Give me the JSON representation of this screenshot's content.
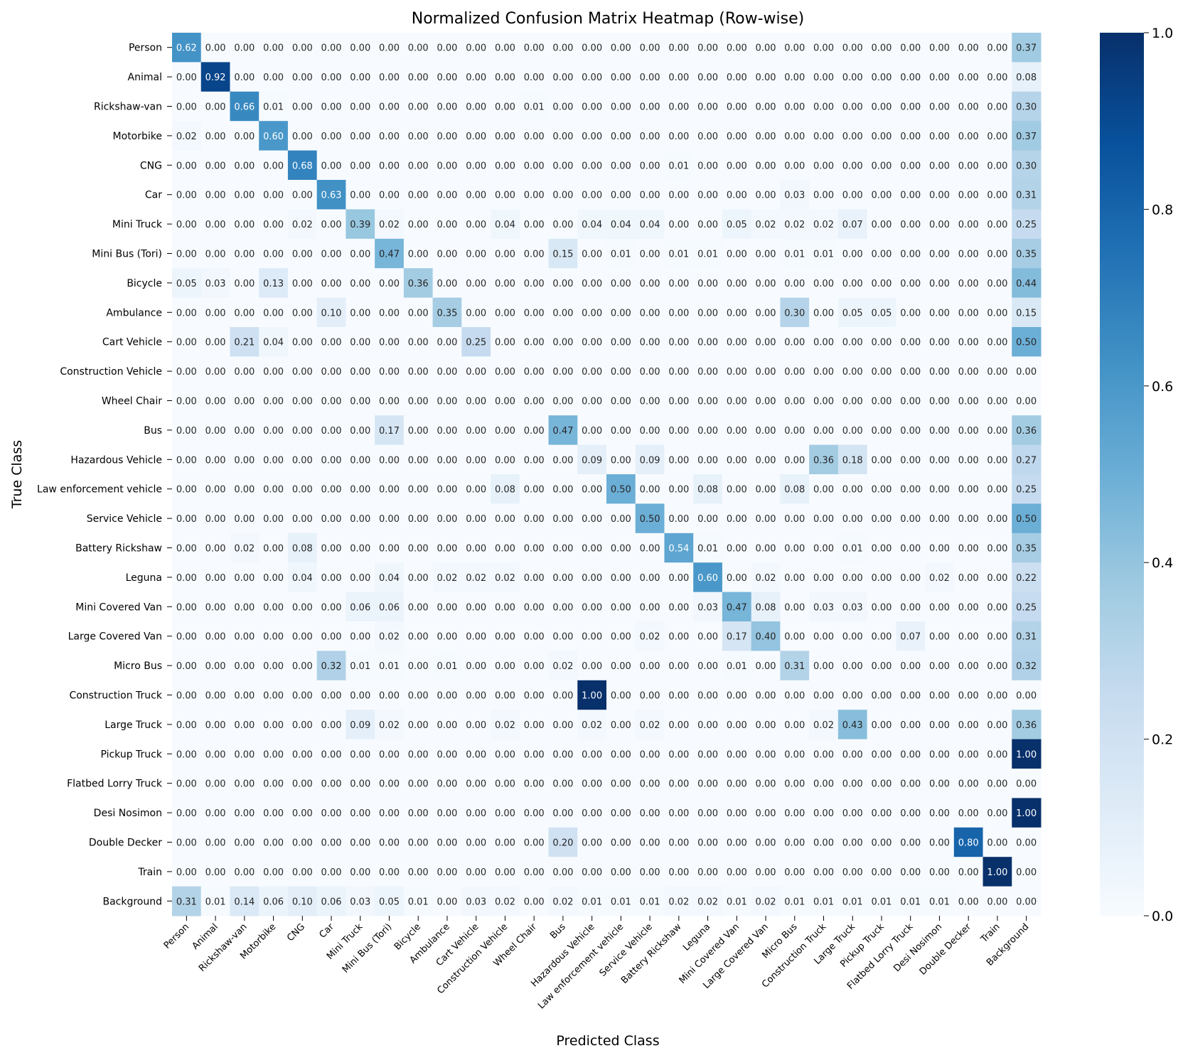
{
  "chart_data": {
    "type": "heatmap",
    "title": "Normalized Confusion Matrix Heatmap (Row-wise)",
    "xlabel": "Predicted Class",
    "ylabel": "True Class",
    "colormap": "Blues",
    "value_format": "2 decimals",
    "colorbar": {
      "range": [
        0.0,
        1.0
      ],
      "ticks": [
        "0.0",
        "0.2",
        "0.4",
        "0.6",
        "0.8",
        "1.0"
      ]
    },
    "x_categories": [
      "Person",
      "Animal",
      "Rickshaw-van",
      "Motorbike",
      "CNG",
      "Car",
      "Mini Truck",
      "Mini Bus (Tori)",
      "Bicycle",
      "Ambulance",
      "Cart Vehicle",
      "Construction Vehicle",
      "Wheel Chair",
      "Bus",
      "Hazardous Vehicle",
      "Law enforcement vehicle",
      "Service Vehicle",
      "Battery Rickshaw",
      "Leguna",
      "Mini Covered Van",
      "Large Covered Van",
      "Micro Bus",
      "Construction Truck",
      "Large Truck",
      "Pickup Truck",
      "Flatbed Lorry Truck",
      "Desi Nosimon",
      "Double Decker",
      "Train",
      "Background"
    ],
    "y_categories": [
      "Person",
      "Animal",
      "Rickshaw-van",
      "Motorbike",
      "CNG",
      "Car",
      "Mini Truck",
      "Mini Bus (Tori)",
      "Bicycle",
      "Ambulance",
      "Cart Vehicle",
      "Construction Vehicle",
      "Wheel Chair",
      "Bus",
      "Hazardous Vehicle",
      "Law enforcement vehicle",
      "Service Vehicle",
      "Battery Rickshaw",
      "Leguna",
      "Mini Covered Van",
      "Large Covered Van",
      "Micro Bus",
      "Construction Truck",
      "Large Truck",
      "Pickup Truck",
      "Flatbed Lorry Truck",
      "Desi Nosimon",
      "Double Decker",
      "Train",
      "Background"
    ],
    "values": [
      [
        0.62,
        0,
        0,
        0,
        0,
        0,
        0,
        0,
        0,
        0,
        0,
        0,
        0,
        0,
        0,
        0,
        0,
        0,
        0,
        0,
        0,
        0,
        0,
        0,
        0,
        0,
        0,
        0,
        0,
        0.37
      ],
      [
        0,
        0.92,
        0,
        0,
        0,
        0,
        0,
        0,
        0,
        0,
        0,
        0,
        0,
        0,
        0,
        0,
        0,
        0,
        0,
        0,
        0,
        0,
        0,
        0,
        0,
        0,
        0,
        0,
        0,
        0.08
      ],
      [
        0,
        0,
        0.66,
        0.01,
        0,
        0,
        0,
        0,
        0,
        0,
        0,
        0,
        0.01,
        0,
        0,
        0,
        0,
        0,
        0,
        0,
        0,
        0,
        0,
        0,
        0,
        0,
        0,
        0,
        0,
        0.3
      ],
      [
        0.02,
        0,
        0,
        0.6,
        0,
        0,
        0,
        0,
        0,
        0,
        0,
        0,
        0,
        0,
        0,
        0,
        0,
        0,
        0,
        0,
        0,
        0,
        0,
        0,
        0,
        0,
        0,
        0,
        0,
        0.37
      ],
      [
        0,
        0,
        0,
        0,
        0.68,
        0,
        0,
        0,
        0,
        0,
        0,
        0,
        0,
        0,
        0,
        0,
        0,
        0.01,
        0,
        0,
        0,
        0,
        0,
        0,
        0,
        0,
        0,
        0,
        0,
        0.3
      ],
      [
        0,
        0,
        0,
        0,
        0,
        0.63,
        0,
        0,
        0,
        0,
        0,
        0,
        0,
        0,
        0,
        0,
        0,
        0,
        0,
        0,
        0,
        0.03,
        0,
        0,
        0,
        0,
        0,
        0,
        0,
        0.31
      ],
      [
        0,
        0,
        0,
        0,
        0.02,
        0,
        0.39,
        0.02,
        0,
        0,
        0,
        0.04,
        0,
        0,
        0.04,
        0.04,
        0.04,
        0,
        0,
        0.05,
        0.02,
        0.02,
        0.02,
        0.07,
        0,
        0,
        0,
        0,
        0,
        0.25
      ],
      [
        0,
        0,
        0,
        0,
        0,
        0,
        0,
        0.47,
        0,
        0,
        0,
        0,
        0,
        0.15,
        0,
        0.01,
        0,
        0.01,
        0.01,
        0,
        0,
        0.01,
        0.01,
        0,
        0,
        0,
        0,
        0,
        0,
        0.35
      ],
      [
        0.05,
        0.03,
        0,
        0.13,
        0,
        0,
        0,
        0,
        0.36,
        0,
        0,
        0,
        0,
        0,
        0,
        0,
        0,
        0,
        0,
        0,
        0,
        0,
        0,
        0,
        0,
        0,
        0,
        0,
        0,
        0.44
      ],
      [
        0,
        0,
        0,
        0,
        0,
        0.1,
        0,
        0,
        0,
        0.35,
        0,
        0,
        0,
        0,
        0,
        0,
        0,
        0,
        0,
        0,
        0,
        0.3,
        0,
        0.05,
        0.05,
        0,
        0,
        0,
        0,
        0.15
      ],
      [
        0,
        0,
        0.21,
        0.04,
        0,
        0,
        0,
        0,
        0,
        0,
        0.25,
        0,
        0,
        0,
        0,
        0,
        0,
        0,
        0,
        0,
        0,
        0,
        0,
        0,
        0,
        0,
        0,
        0,
        0,
        0.5
      ],
      [
        0,
        0,
        0,
        0,
        0,
        0,
        0,
        0,
        0,
        0,
        0,
        0,
        0,
        0,
        0,
        0,
        0,
        0,
        0,
        0,
        0,
        0,
        0,
        0,
        0,
        0,
        0,
        0,
        0,
        0
      ],
      [
        0,
        0,
        0,
        0,
        0,
        0,
        0,
        0,
        0,
        0,
        0,
        0,
        0,
        0,
        0,
        0,
        0,
        0,
        0,
        0,
        0,
        0,
        0,
        0,
        0,
        0,
        0,
        0,
        0,
        0
      ],
      [
        0,
        0,
        0,
        0,
        0,
        0,
        0,
        0.17,
        0,
        0,
        0,
        0,
        0,
        0.47,
        0,
        0,
        0,
        0,
        0,
        0,
        0,
        0,
        0,
        0,
        0,
        0,
        0,
        0,
        0,
        0.36
      ],
      [
        0,
        0,
        0,
        0,
        0,
        0,
        0,
        0,
        0,
        0,
        0,
        0,
        0,
        0,
        0.09,
        0,
        0.09,
        0,
        0,
        0,
        0,
        0,
        0.36,
        0.18,
        0,
        0,
        0,
        0,
        0,
        0.27
      ],
      [
        0,
        0,
        0,
        0,
        0,
        0,
        0,
        0,
        0,
        0,
        0,
        0.08,
        0,
        0,
        0,
        0.5,
        0,
        0,
        0.08,
        0,
        0,
        0.08,
        0,
        0,
        0,
        0,
        0,
        0,
        0,
        0.25
      ],
      [
        0,
        0,
        0,
        0,
        0,
        0,
        0,
        0,
        0,
        0,
        0,
        0,
        0,
        0,
        0,
        0,
        0.5,
        0,
        0,
        0,
        0,
        0,
        0,
        0,
        0,
        0,
        0,
        0,
        0,
        0.5
      ],
      [
        0,
        0,
        0.02,
        0,
        0.08,
        0,
        0,
        0,
        0,
        0,
        0,
        0,
        0,
        0,
        0,
        0,
        0,
        0.54,
        0.01,
        0,
        0,
        0,
        0,
        0.01,
        0,
        0,
        0,
        0,
        0,
        0.35
      ],
      [
        0,
        0,
        0,
        0,
        0.04,
        0,
        0,
        0.04,
        0,
        0.02,
        0.02,
        0.02,
        0,
        0,
        0,
        0,
        0,
        0,
        0.6,
        0,
        0.02,
        0,
        0,
        0,
        0,
        0,
        0.02,
        0,
        0,
        0.22
      ],
      [
        0,
        0,
        0,
        0,
        0,
        0,
        0.06,
        0.06,
        0,
        0,
        0,
        0,
        0,
        0,
        0,
        0,
        0,
        0,
        0.03,
        0.47,
        0.08,
        0,
        0.03,
        0.03,
        0,
        0,
        0,
        0,
        0,
        0.25
      ],
      [
        0,
        0,
        0,
        0,
        0,
        0,
        0,
        0.02,
        0,
        0,
        0,
        0,
        0,
        0,
        0,
        0,
        0.02,
        0,
        0,
        0.17,
        0.4,
        0,
        0,
        0,
        0,
        0.07,
        0,
        0,
        0,
        0.31
      ],
      [
        0,
        0,
        0,
        0,
        0,
        0.32,
        0.01,
        0.01,
        0,
        0.01,
        0,
        0,
        0,
        0.02,
        0,
        0,
        0,
        0,
        0,
        0.01,
        0,
        0.31,
        0,
        0,
        0,
        0,
        0,
        0,
        0,
        0.32
      ],
      [
        0,
        0,
        0,
        0,
        0,
        0,
        0,
        0,
        0,
        0,
        0,
        0,
        0,
        0,
        1.0,
        0,
        0,
        0,
        0,
        0,
        0,
        0,
        0,
        0,
        0,
        0,
        0,
        0,
        0,
        0
      ],
      [
        0,
        0,
        0,
        0,
        0,
        0,
        0.09,
        0.02,
        0,
        0,
        0,
        0.02,
        0,
        0,
        0.02,
        0,
        0.02,
        0,
        0,
        0,
        0,
        0,
        0.02,
        0.43,
        0,
        0,
        0,
        0,
        0,
        0.36
      ],
      [
        0,
        0,
        0,
        0,
        0,
        0,
        0,
        0,
        0,
        0,
        0,
        0,
        0,
        0,
        0,
        0,
        0,
        0,
        0,
        0,
        0,
        0,
        0,
        0,
        0,
        0,
        0,
        0,
        0,
        1.0
      ],
      [
        0,
        0,
        0,
        0,
        0,
        0,
        0,
        0,
        0,
        0,
        0,
        0,
        0,
        0,
        0,
        0,
        0,
        0,
        0,
        0,
        0,
        0,
        0,
        0,
        0,
        0,
        0,
        0,
        0,
        0
      ],
      [
        0,
        0,
        0,
        0,
        0,
        0,
        0,
        0,
        0,
        0,
        0,
        0,
        0,
        0,
        0,
        0,
        0,
        0,
        0,
        0,
        0,
        0,
        0,
        0,
        0,
        0,
        0,
        0,
        0,
        1.0
      ],
      [
        0,
        0,
        0,
        0,
        0,
        0,
        0,
        0,
        0,
        0,
        0,
        0,
        0,
        0.2,
        0,
        0,
        0,
        0,
        0,
        0,
        0,
        0,
        0,
        0,
        0,
        0,
        0,
        0.8,
        0,
        0
      ],
      [
        0,
        0,
        0,
        0,
        0,
        0,
        0,
        0,
        0,
        0,
        0,
        0,
        0,
        0,
        0,
        0,
        0,
        0,
        0,
        0,
        0,
        0,
        0,
        0,
        0,
        0,
        0,
        0,
        1.0,
        0
      ],
      [
        0.31,
        0.01,
        0.14,
        0.06,
        0.1,
        0.06,
        0.03,
        0.05,
        0.01,
        0,
        0.03,
        0.02,
        0,
        0.02,
        0.01,
        0.01,
        0.01,
        0.02,
        0.02,
        0.01,
        0.02,
        0.01,
        0.01,
        0.01,
        0.01,
        0.01,
        0.01,
        0,
        0,
        0
      ]
    ]
  }
}
